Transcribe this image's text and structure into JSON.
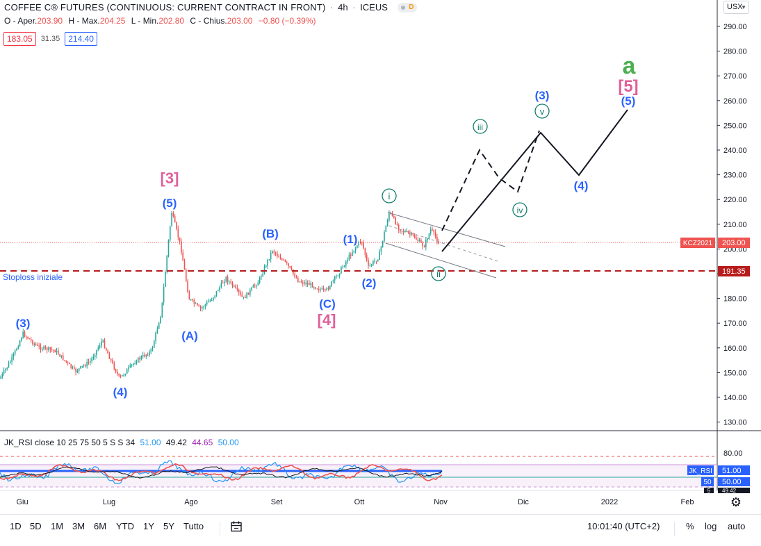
{
  "header": {
    "title": "COFFEE C® FUTURES (CONTINUOUS: CURRENT CONTRACT IN FRONT)",
    "interval": "4h",
    "exchange": "ICEUS",
    "badge": "D"
  },
  "ohlc": {
    "open_label": "O - Aper.",
    "open": "203.90",
    "high_label": "H - Max.",
    "high": "204.25",
    "low_label": "L - Min.",
    "low": "202.80",
    "close_label": "C - Chius.",
    "close": "203.00",
    "change": "−0.80 (−0.39%)"
  },
  "indicator_boxes": {
    "left": "183.05",
    "middle": "31.35",
    "right": "214.40"
  },
  "currency": "USX",
  "price_axis": {
    "ticks": [
      "290.00",
      "280.00",
      "270.00",
      "260.00",
      "250.00",
      "240.00",
      "230.00",
      "220.00",
      "210.00",
      "200.00",
      "190.00",
      "180.00",
      "170.00",
      "160.00",
      "150.00",
      "140.00",
      "130.00"
    ],
    "last_price_label": "203.00",
    "symbol_label": "KCZ2021",
    "stoploss_price": "191.35"
  },
  "stoploss_text": "Stoploss iniziale",
  "rsi": {
    "legend": "JK_RSI close 10 25 75 50 5 S S 34",
    "v1": "51.00",
    "v2": "49.42",
    "v3": "44.65",
    "v4": "50.00",
    "axis_ticks": [
      "80.00",
      "50.00"
    ],
    "label_jkrsi": "JK_RSI",
    "label_jk_value": "51.00",
    "label_50": "50",
    "label_50_value": "50.00",
    "label_5": "5",
    "label_5_value": "49.42"
  },
  "time_axis": [
    "Giu",
    "Lug",
    "Ago",
    "Set",
    "Ott",
    "Nov",
    "Dic",
    "2022",
    "Feb"
  ],
  "wave_labels": {
    "w3_left": "(3)",
    "w4_left": "(4)",
    "w3_bracket": "[3]",
    "w5_top": "(5)",
    "wA": "(A)",
    "wB": "(B)",
    "wC": "(C)",
    "w4_bracket": "[4]",
    "w1": "(1)",
    "w2": "(2)",
    "wi": "i",
    "wii": "ii",
    "wiii": "iii",
    "wiv": "iv",
    "wv": "v",
    "w3_proj": "(3)",
    "w4_proj": "(4)",
    "w5_proj": "(5)",
    "w5_bracket": "[5]",
    "wa": "a"
  },
  "toolbar": {
    "ranges": [
      "1D",
      "5D",
      "1M",
      "3M",
      "6M",
      "YTD",
      "1Y",
      "5Y",
      "Tutto"
    ],
    "time": "10:01:40 (UTC+2)",
    "percent": "%",
    "log": "log",
    "auto": "auto"
  },
  "colors": {
    "up": "#26a69a",
    "down": "#ef5350",
    "wave_blue": "#2962ff",
    "wave_pink": "#e0609a",
    "wave_green": "#4caf50",
    "circle_teal": "#0f7b6c",
    "stoploss": "#b71c1c"
  }
}
